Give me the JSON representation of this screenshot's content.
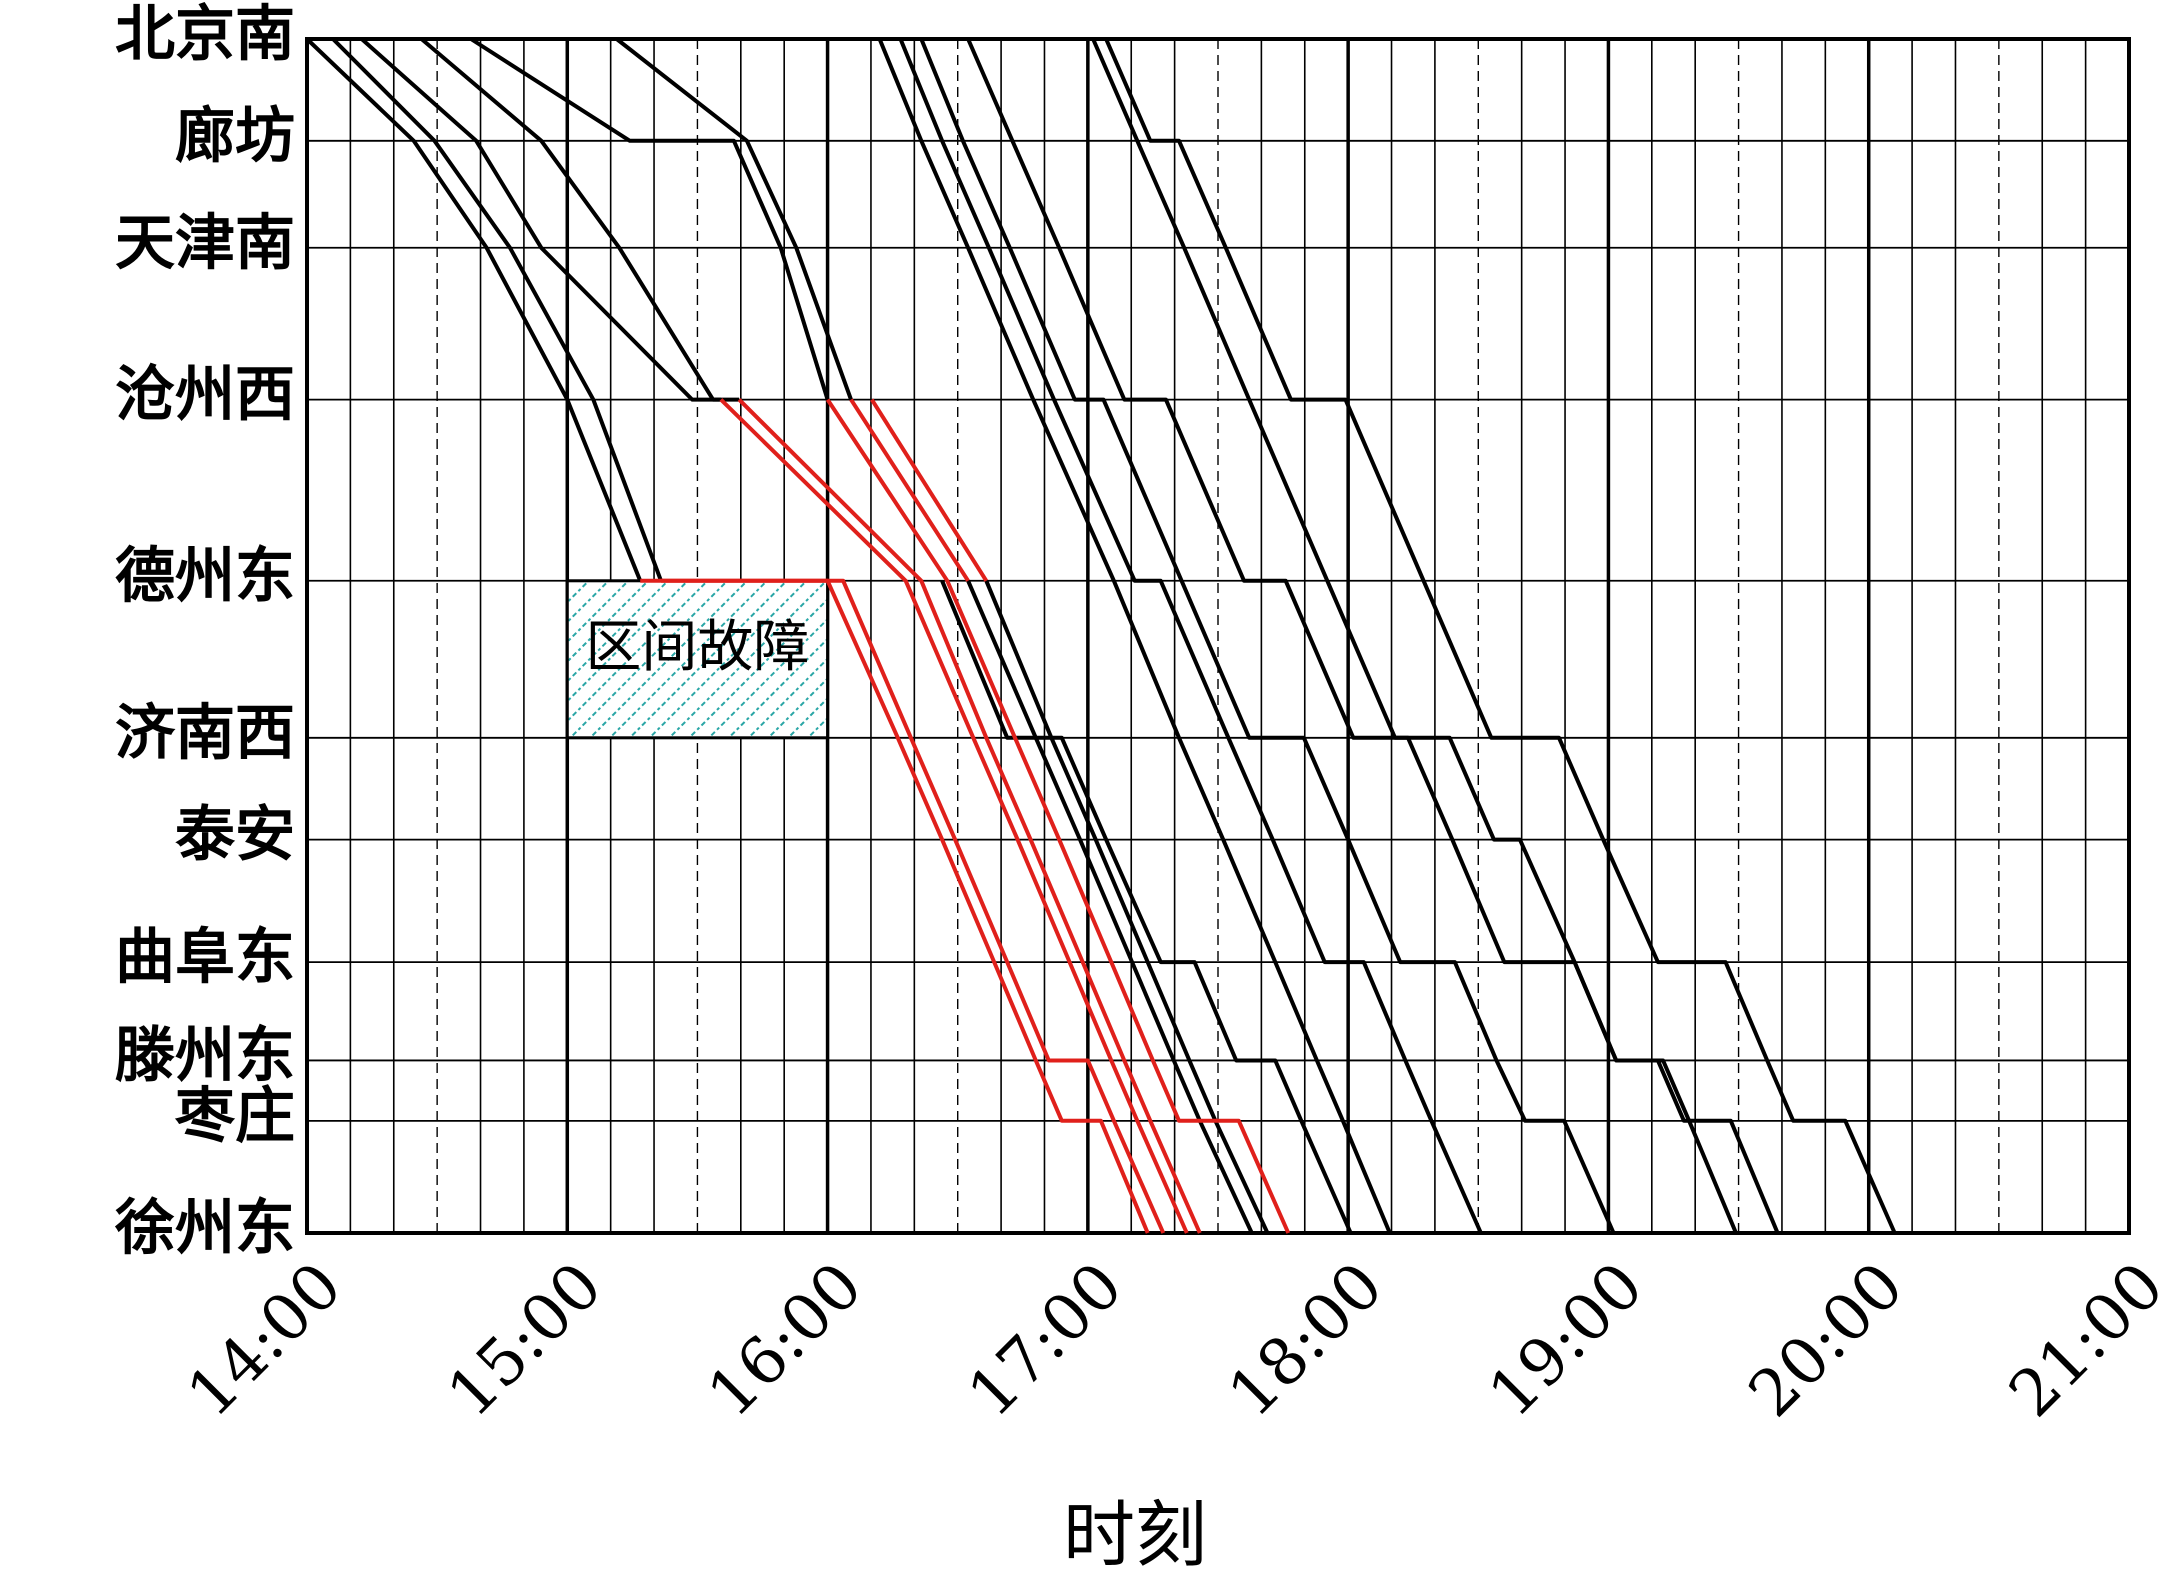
{
  "chart_data": {
    "type": "line",
    "xlabel": "时刻",
    "xlim": [
      14,
      21
    ],
    "xticks": [
      {
        "value": 14,
        "label": "14:00"
      },
      {
        "value": 15,
        "label": "15:00"
      },
      {
        "value": 16,
        "label": "16:00"
      },
      {
        "value": 17,
        "label": "17:00"
      },
      {
        "value": 18,
        "label": "18:00"
      },
      {
        "value": 19,
        "label": "19:00"
      },
      {
        "value": 20,
        "label": "20:00"
      },
      {
        "value": 21,
        "label": "21:00"
      }
    ],
    "ylim": [
      0,
      692
    ],
    "y_inverted": true,
    "yticks": [
      {
        "value": 0,
        "label": "北京南"
      },
      {
        "value": 59,
        "label": "廊坊"
      },
      {
        "value": 121,
        "label": "天津南"
      },
      {
        "value": 209,
        "label": "沧州西"
      },
      {
        "value": 314,
        "label": "德州东"
      },
      {
        "value": 405,
        "label": "济南西"
      },
      {
        "value": 464,
        "label": "泰安"
      },
      {
        "value": 535,
        "label": "曲阜东"
      },
      {
        "value": 592,
        "label": "滕州东"
      },
      {
        "value": 627,
        "label": "枣庄"
      },
      {
        "value": 692,
        "label": "徐州东"
      }
    ],
    "grid": true,
    "annotation": {
      "text": "区间故障",
      "x": [
        15,
        16
      ],
      "y": [
        314,
        405
      ],
      "color": "#2aa6a6"
    },
    "series": [
      {
        "color": "#000000",
        "x": [
          14.0,
          14.41,
          14.69,
          15.0,
          15.28
        ],
        "values": [
          0,
          59,
          121,
          209,
          314
        ]
      },
      {
        "color": "#000000",
        "x": [
          14.1,
          14.49,
          14.78,
          15.1,
          15.36
        ],
        "values": [
          0,
          59,
          121,
          209,
          314
        ]
      },
      {
        "color": "#000000",
        "x": [
          14.21,
          14.65,
          14.9,
          15.48,
          15.59
        ],
        "values": [
          0,
          59,
          121,
          209,
          209
        ]
      },
      {
        "color": "#000000",
        "x": [
          14.44,
          14.9,
          15.2,
          15.56,
          15.66
        ],
        "values": [
          0,
          59,
          121,
          209,
          209
        ]
      },
      {
        "color": "#000000",
        "x": [
          14.63,
          15.24,
          15.64,
          15.82,
          16.0
        ],
        "values": [
          0,
          59,
          59,
          121,
          209
        ]
      },
      {
        "color": "#000000",
        "x": [
          15.19,
          15.69,
          15.88,
          16.09
        ],
        "values": [
          0,
          59,
          121,
          209
        ]
      },
      {
        "color": "#000000",
        "x": [
          16.2,
          16.36,
          16.54,
          16.79,
          17.1,
          17.35,
          17.52,
          17.72,
          17.88,
          17.98,
          18.16
        ],
        "values": [
          0,
          59,
          121,
          209,
          314,
          405,
          464,
          535,
          592,
          627,
          692
        ]
      },
      {
        "color": "#000000",
        "x": [
          16.28,
          16.44,
          16.62,
          16.87,
          17.18,
          17.28,
          17.54,
          17.71,
          17.91,
          18.06,
          18.22,
          18.32,
          18.51
        ],
        "values": [
          0,
          59,
          121,
          209,
          314,
          314,
          405,
          464,
          535,
          535,
          592,
          627,
          692
        ]
      },
      {
        "color": "#000000",
        "x": [
          16.36,
          16.52,
          16.7,
          16.95,
          17.06,
          17.36,
          17.62,
          17.83,
          18.0,
          18.2,
          18.41,
          18.57,
          18.68,
          18.83,
          19.02
        ],
        "values": [
          0,
          59,
          121,
          209,
          209,
          314,
          405,
          405,
          464,
          535,
          535,
          592,
          627,
          627,
          692
        ]
      },
      {
        "color": "#000000",
        "x": [
          16.54,
          16.71,
          16.89,
          17.14,
          17.3,
          17.6,
          17.76,
          18.02,
          18.23,
          18.4,
          18.6,
          18.87,
          19.03,
          19.21,
          19.31,
          19.49
        ],
        "values": [
          0,
          59,
          121,
          209,
          209,
          314,
          314,
          405,
          405,
          464,
          535,
          535,
          592,
          592,
          627,
          692
        ]
      },
      {
        "color": "#000000",
        "x": [
          17.02,
          17.19,
          17.37,
          17.62,
          17.92,
          18.18,
          18.39,
          18.56,
          18.66,
          18.87,
          19.03,
          19.19,
          19.29,
          19.47,
          19.65
        ],
        "values": [
          0,
          59,
          121,
          209,
          314,
          405,
          405,
          464,
          464,
          535,
          592,
          592,
          627,
          627,
          692
        ]
      },
      {
        "color": "#000000",
        "x": [
          17.07,
          17.24,
          17.35,
          17.53,
          17.78,
          17.99,
          18.29,
          18.55,
          18.81,
          18.98,
          19.19,
          19.45,
          19.61,
          19.71,
          19.91,
          20.1
        ],
        "values": [
          0,
          59,
          59,
          121,
          209,
          209,
          314,
          405,
          405,
          464,
          535,
          535,
          592,
          627,
          627,
          692
        ]
      },
      {
        "color": "#000000",
        "x": [
          16.54,
          16.8,
          16.97,
          17.17,
          17.33,
          17.43,
          17.63
        ],
        "values": [
          314,
          405,
          464,
          535,
          592,
          627,
          692
        ]
      },
      {
        "color": "#000000",
        "x": [
          16.61,
          16.86,
          17.03,
          17.23,
          17.39,
          17.49,
          17.69
        ],
        "values": [
          314,
          405,
          464,
          535,
          592,
          627,
          692
        ]
      },
      {
        "color": "#000000",
        "x": [
          16.44,
          16.69,
          16.9,
          17.07,
          17.28,
          17.41,
          17.57,
          17.72,
          17.82,
          18.01
        ],
        "values": [
          314,
          405,
          405,
          464,
          535,
          535,
          592,
          592,
          627,
          692
        ]
      },
      {
        "color": "#e0201b",
        "x": [
          15.28,
          16.0,
          16.27,
          16.44,
          16.64,
          16.8,
          16.9,
          17.05,
          17.23
        ],
        "values": [
          314,
          314,
          405,
          464,
          535,
          592,
          627,
          627,
          692
        ]
      },
      {
        "color": "#e0201b",
        "x": [
          15.36,
          16.06,
          16.32,
          16.49,
          16.69,
          16.85,
          17.0,
          17.1,
          17.29
        ],
        "values": [
          314,
          314,
          405,
          464,
          535,
          592,
          592,
          627,
          692
        ]
      },
      {
        "color": "#e0201b",
        "x": [
          15.59,
          16.3,
          16.56,
          16.73,
          16.93,
          17.09,
          17.19,
          17.38
        ],
        "values": [
          209,
          314,
          405,
          464,
          535,
          592,
          627,
          692
        ]
      },
      {
        "color": "#e0201b",
        "x": [
          15.66,
          16.36,
          16.61,
          16.78,
          16.98,
          17.14,
          17.24,
          17.43
        ],
        "values": [
          209,
          314,
          405,
          464,
          535,
          592,
          627,
          692
        ]
      },
      {
        "color": "#e0201b",
        "x": [
          16.0,
          16.46,
          16.72,
          16.89,
          17.09,
          17.25,
          17.35,
          17.58,
          17.77
        ],
        "values": [
          209,
          314,
          405,
          464,
          535,
          592,
          627,
          627,
          692
        ]
      },
      {
        "color": "#e0201b",
        "x": [
          16.09,
          16.54
        ],
        "values": [
          209,
          314
        ]
      },
      {
        "color": "#e0201b",
        "x": [
          16.17,
          16.61
        ],
        "values": [
          209,
          314
        ]
      }
    ]
  }
}
